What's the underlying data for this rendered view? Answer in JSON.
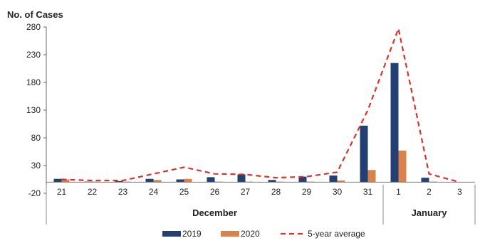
{
  "chart_data": {
    "type": "bar",
    "ylabel": "No. of Cases",
    "ylim": [
      -20,
      280
    ],
    "yticks": [
      "-20",
      "30",
      "80",
      "130",
      "180",
      "230",
      "280"
    ],
    "categories": [
      "21",
      "22",
      "23",
      "24",
      "25",
      "26",
      "27",
      "28",
      "29",
      "30",
      "31",
      "1",
      "2",
      "3"
    ],
    "category_groups": [
      {
        "label": "December",
        "count": 11
      },
      {
        "label": "January",
        "count": 3
      }
    ],
    "series": [
      {
        "name": "2019",
        "type": "bar",
        "color": "#243f72",
        "values": [
          6,
          1,
          2,
          6,
          5,
          9,
          14,
          4,
          10,
          12,
          102,
          215,
          8,
          0
        ]
      },
      {
        "name": "2020",
        "type": "bar",
        "color": "#d9834a",
        "values": [
          5,
          1,
          1,
          4,
          6,
          1,
          1,
          1,
          1,
          3,
          22,
          57,
          1,
          0
        ]
      },
      {
        "name": "5-year average",
        "type": "line",
        "style": "dashed",
        "color": "#d9322b",
        "values": [
          5,
          3,
          3,
          15,
          27,
          15,
          14,
          8,
          10,
          18,
          130,
          277,
          15,
          0
        ]
      }
    ],
    "legend": "bottom-center",
    "grid": false
  }
}
